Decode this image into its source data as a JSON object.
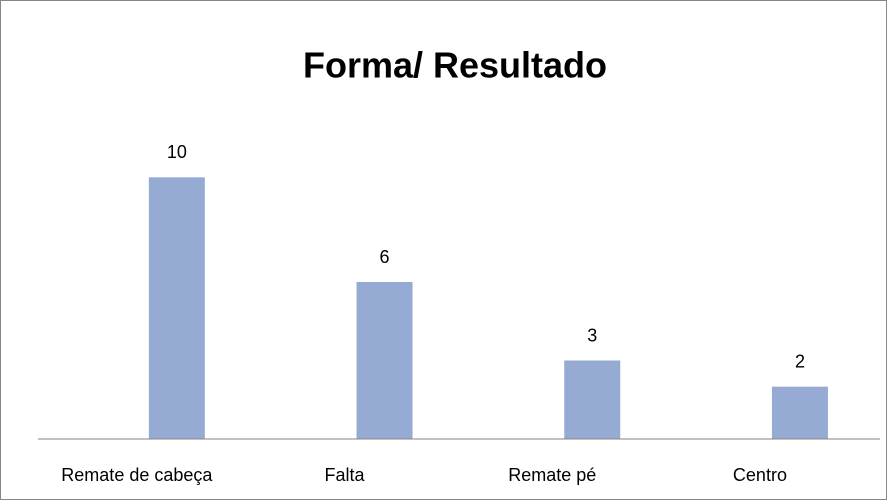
{
  "chart_data": {
    "type": "bar",
    "title": "Forma/ Resultado",
    "categories": [
      "Remate de cabeça",
      "Falta",
      "Remate pé",
      "Centro"
    ],
    "values": [
      10,
      6,
      3,
      2
    ],
    "color": "#95abd3",
    "ylim": [
      0,
      12
    ],
    "grid": false
  }
}
